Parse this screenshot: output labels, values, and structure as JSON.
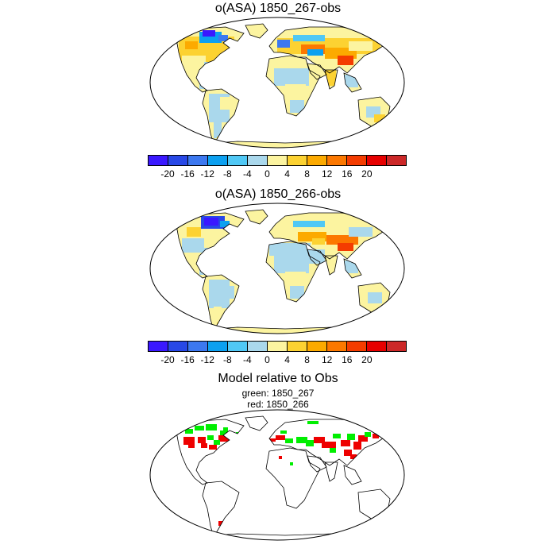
{
  "panels": [
    {
      "title": "o(ASA) 1850_267-obs"
    },
    {
      "title": "o(ASA) 1850_266-obs"
    },
    {
      "title": "Model relative to Obs",
      "legend": [
        "green: 1850_267",
        "red: 1850_266"
      ]
    }
  ],
  "colorbar": {
    "colors": [
      "#3a18ff",
      "#2848e6",
      "#3c78f0",
      "#0ca0f0",
      "#50c8f5",
      "#aad8ec",
      "#fcf4a0",
      "#fcd232",
      "#fcaa00",
      "#fc7800",
      "#f43c00",
      "#e60000",
      "#cc2828"
    ],
    "ticks": [
      "-20",
      "-16",
      "-12",
      "-8",
      "-4",
      "0",
      "4",
      "8",
      "12",
      "16",
      "20"
    ]
  },
  "colors": {
    "green": "#00ee00",
    "red": "#ee0000",
    "coast": "#000000"
  }
}
